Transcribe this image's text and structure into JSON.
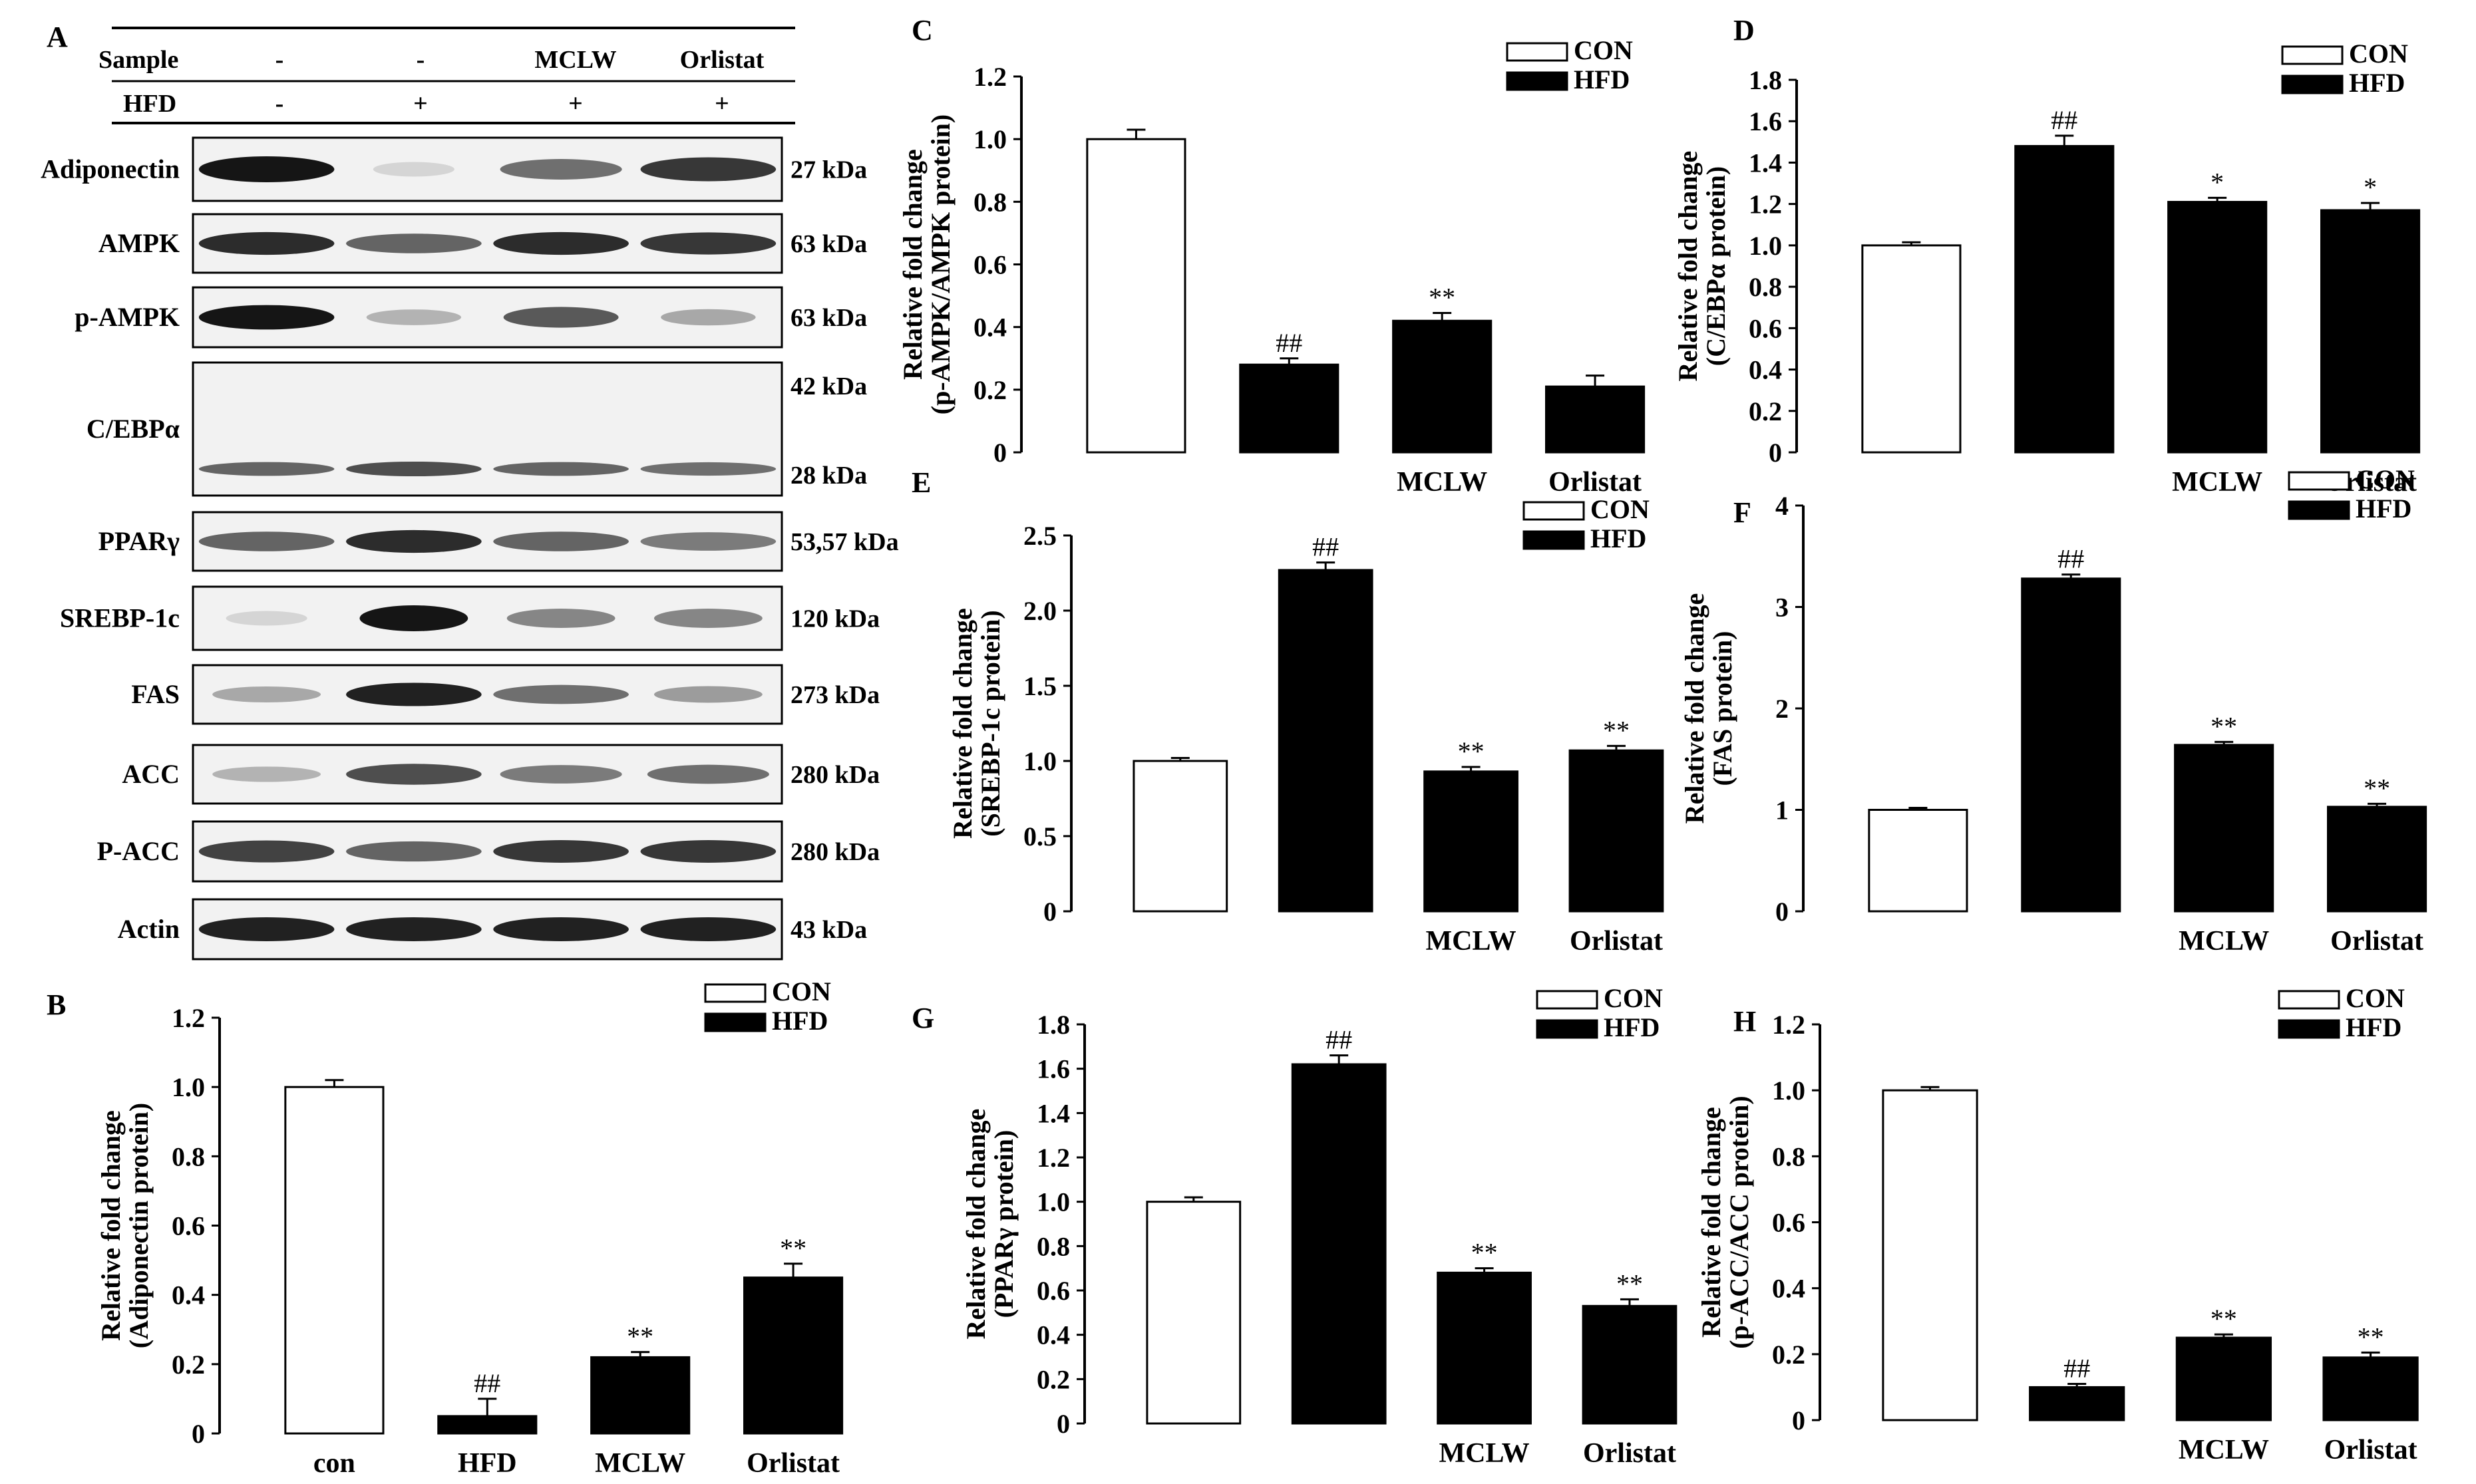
{
  "figure": {
    "panel_a": {
      "letter": "A",
      "sample_label": "Sample",
      "hfd_label": "HFD",
      "sample_values": [
        "-",
        "-",
        "MCLW",
        "Orlistat"
      ],
      "hfd_values": [
        "-",
        "+",
        "+",
        "+"
      ],
      "blots": [
        {
          "name": "Adiponectin",
          "size": "27 kDa",
          "intensity": [
            0.95,
            0.1,
            0.55,
            0.8
          ],
          "width": [
            1.0,
            0.6,
            0.9,
            1.0
          ]
        },
        {
          "name": "AMPK",
          "size": "63 kDa",
          "intensity": [
            0.85,
            0.6,
            0.85,
            0.8
          ],
          "width": [
            1.0,
            1.0,
            1.0,
            1.0
          ]
        },
        {
          "name": "p-AMPK",
          "size": "63 kDa",
          "intensity": [
            0.95,
            0.25,
            0.65,
            0.3
          ],
          "width": [
            1.0,
            0.7,
            0.85,
            0.7
          ]
        },
        {
          "name": "C/EBPα",
          "size_top": "42 kDa",
          "size_bottom": "28 kDa",
          "intensity": [
            0.6,
            0.7,
            0.6,
            0.55
          ],
          "width": [
            1.0,
            1.0,
            1.0,
            1.0
          ]
        },
        {
          "name": "PPARγ",
          "size": "53,57 kDa",
          "intensity": [
            0.6,
            0.85,
            0.6,
            0.5
          ],
          "width": [
            1.0,
            1.0,
            1.0,
            1.0
          ]
        },
        {
          "name": "SREBP-1c",
          "size": "120 kDa",
          "intensity": [
            0.1,
            0.95,
            0.45,
            0.45
          ],
          "width": [
            0.6,
            0.8,
            0.8,
            0.8
          ]
        },
        {
          "name": "FAS",
          "size": "273 kDa",
          "intensity": [
            0.3,
            0.9,
            0.55,
            0.35
          ],
          "width": [
            0.8,
            1.0,
            1.0,
            0.8
          ]
        },
        {
          "name": "ACC",
          "size": "280 kDa",
          "intensity": [
            0.25,
            0.7,
            0.5,
            0.55
          ],
          "width": [
            0.8,
            1.0,
            0.9,
            0.9
          ]
        },
        {
          "name": "P-ACC",
          "size": "280 kDa",
          "intensity": [
            0.75,
            0.6,
            0.8,
            0.8
          ],
          "width": [
            1.0,
            1.0,
            1.0,
            1.0
          ]
        },
        {
          "name": "Actin",
          "size": "43 kDa",
          "intensity": [
            0.9,
            0.9,
            0.9,
            0.9
          ],
          "width": [
            1.0,
            1.0,
            1.0,
            1.0
          ]
        }
      ]
    }
  },
  "chart_data": [
    {
      "panel": "B",
      "type": "bar",
      "categories": [
        "con",
        "HFD",
        "MCLW",
        "Orlistat"
      ],
      "values": [
        1.0,
        0.05,
        0.22,
        0.45
      ],
      "errors": [
        0.02,
        0.05,
        0.015,
        0.04
      ],
      "fills": [
        "#ffffff",
        "#000000",
        "#000000",
        "#000000"
      ],
      "annotations": [
        "",
        "##",
        "**",
        "**"
      ],
      "ylabel_1": "Relative fold change",
      "ylabel_2": "(Adiponectin protein)",
      "ylim": [
        0,
        1.2
      ],
      "yticks": [
        "0",
        "0.2",
        "0.4",
        "0.6",
        "0.8",
        "1.0",
        "1.2"
      ],
      "legend": [
        "CON",
        "HFD"
      ],
      "legend_position": "top-right"
    },
    {
      "panel": "C",
      "type": "bar",
      "categories": [
        "",
        "",
        "MCLW",
        "Orlistat"
      ],
      "values": [
        1.0,
        0.28,
        0.42,
        0.21
      ],
      "errors": [
        0.03,
        0.02,
        0.025,
        0.035
      ],
      "fills": [
        "#ffffff",
        "#000000",
        "#000000",
        "#000000"
      ],
      "annotations": [
        "",
        "##",
        "**",
        ""
      ],
      "ylabel_1": "Relative fold change",
      "ylabel_2": "(p-AMPK/AMPK protein)",
      "ylim": [
        0,
        1.2
      ],
      "yticks": [
        "0",
        "0.2",
        "0.4",
        "0.6",
        "0.8",
        "1.0",
        "1.2"
      ],
      "legend": [
        "CON",
        "HFD"
      ],
      "legend_position": "top-right"
    },
    {
      "panel": "D",
      "type": "bar",
      "categories": [
        "",
        "",
        "MCLW",
        "Orlistat"
      ],
      "values": [
        1.0,
        1.48,
        1.21,
        1.17
      ],
      "errors": [
        0.015,
        0.05,
        0.02,
        0.035
      ],
      "fills": [
        "#ffffff",
        "#000000",
        "#000000",
        "#000000"
      ],
      "annotations": [
        "",
        "##",
        "*",
        "*"
      ],
      "ylabel_1": "Relative fold change",
      "ylabel_2": "(C/EBPα protein)",
      "ylim": [
        0,
        1.8
      ],
      "yticks": [
        "0",
        "0.2",
        "0.4",
        "0.6",
        "0.8",
        "1.0",
        "1.2",
        "1.4",
        "1.6",
        "1.8"
      ],
      "legend": [
        "CON",
        "HFD"
      ],
      "legend_position": "top-right"
    },
    {
      "panel": "E",
      "type": "bar",
      "categories": [
        "",
        "",
        "MCLW",
        "Orlistat"
      ],
      "values": [
        1.0,
        2.27,
        0.93,
        1.07
      ],
      "errors": [
        0.02,
        0.05,
        0.03,
        0.03
      ],
      "fills": [
        "#ffffff",
        "#000000",
        "#000000",
        "#000000"
      ],
      "annotations": [
        "",
        "##",
        "**",
        "**"
      ],
      "ylabel_1": "Relative fold change",
      "ylabel_2": "(SREBP-1c protein)",
      "ylim": [
        0,
        2.5
      ],
      "yticks": [
        "0",
        "0.5",
        "1.0",
        "1.5",
        "2.0",
        "2.5"
      ],
      "legend": [
        "CON",
        "HFD"
      ],
      "legend_position": "top-right"
    },
    {
      "panel": "F",
      "type": "bar",
      "categories": [
        "",
        "",
        "MCLW",
        "Orlistat"
      ],
      "values": [
        1.0,
        3.28,
        1.64,
        1.03
      ],
      "errors": [
        0.02,
        0.04,
        0.03,
        0.03
      ],
      "fills": [
        "#ffffff",
        "#000000",
        "#000000",
        "#000000"
      ],
      "annotations": [
        "",
        "##",
        "**",
        "**"
      ],
      "ylabel_1": "Relative fold change",
      "ylabel_2": "(FAS protein)",
      "ylim": [
        0,
        4
      ],
      "yticks": [
        "0",
        "1",
        "2",
        "3",
        "4"
      ],
      "legend": [
        "CON",
        "HFD"
      ],
      "legend_position": "top-right"
    },
    {
      "panel": "G",
      "type": "bar",
      "categories": [
        "",
        "",
        "MCLW",
        "Orlistat"
      ],
      "values": [
        1.0,
        1.62,
        0.68,
        0.53
      ],
      "errors": [
        0.02,
        0.04,
        0.02,
        0.03
      ],
      "fills": [
        "#ffffff",
        "#000000",
        "#000000",
        "#000000"
      ],
      "annotations": [
        "",
        "##",
        "**",
        "**"
      ],
      "ylabel_1": "Relative fold change",
      "ylabel_2": "(PPARγ protein)",
      "ylim": [
        0,
        1.8
      ],
      "yticks": [
        "0",
        "0.2",
        "0.4",
        "0.6",
        "0.8",
        "1.0",
        "1.2",
        "1.4",
        "1.6",
        "1.8"
      ],
      "legend": [
        "CON",
        "HFD"
      ],
      "legend_position": "top-right"
    },
    {
      "panel": "H",
      "type": "bar",
      "categories": [
        "",
        "",
        "MCLW",
        "Orlistat"
      ],
      "values": [
        1.0,
        0.1,
        0.25,
        0.19
      ],
      "errors": [
        0.01,
        0.01,
        0.01,
        0.015
      ],
      "fills": [
        "#ffffff",
        "#000000",
        "#000000",
        "#000000"
      ],
      "annotations": [
        "",
        "##",
        "**",
        "**"
      ],
      "ylabel_1": "Relative fold change",
      "ylabel_2": "(p-ACC/ACC  protein)",
      "ylim": [
        0,
        1.2
      ],
      "yticks": [
        "0",
        "0.2",
        "0.4",
        "0.6",
        "0.8",
        "1.0",
        "1.2"
      ],
      "legend": [
        "CON",
        "HFD"
      ],
      "legend_position": "top-right"
    }
  ]
}
